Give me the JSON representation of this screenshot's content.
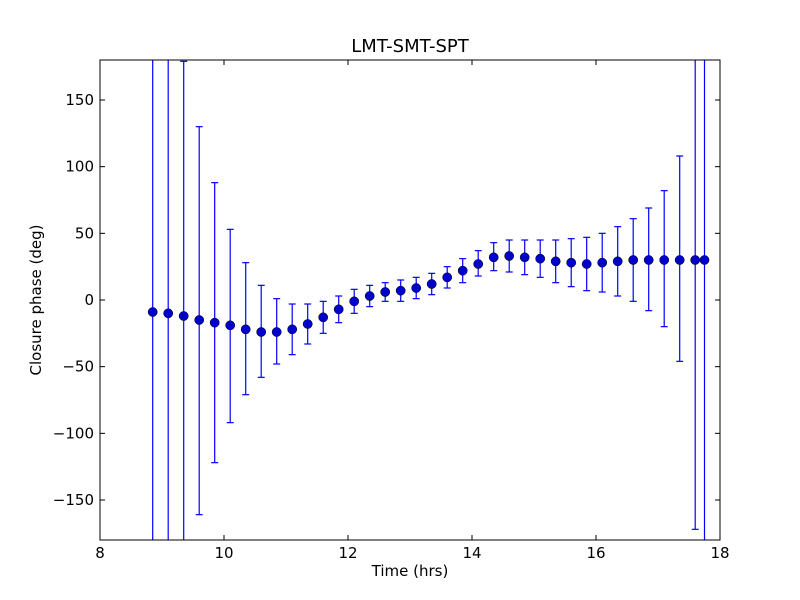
{
  "chart_data": {
    "type": "scatter",
    "title": "LMT-SMT-SPT",
    "xlabel": "Time (hrs)",
    "ylabel": "Closure phase (deg)",
    "xlim": [
      8,
      18
    ],
    "ylim": [
      -180,
      180
    ],
    "x_ticks": [
      8,
      10,
      12,
      14,
      16,
      18
    ],
    "x_tick_labels": [
      "8",
      "10",
      "12",
      "14",
      "16",
      "18"
    ],
    "y_ticks": [
      -150,
      -100,
      -50,
      0,
      50,
      100,
      150
    ],
    "y_tick_labels": [
      "−150",
      "−100",
      "−50",
      "0",
      "50",
      "100",
      "150"
    ],
    "grid": false,
    "legend": "none",
    "marker_color": "#0000cc",
    "errorbar_color": "#0000ff",
    "series": [
      {
        "x": [
          8.85,
          9.1,
          9.35,
          9.6,
          9.85,
          10.1,
          10.35,
          10.6,
          10.85,
          11.1,
          11.35,
          11.6,
          11.85,
          12.1,
          12.35,
          12.6,
          12.85,
          13.1,
          13.35,
          13.6,
          13.85,
          14.1,
          14.35,
          14.6,
          14.85,
          15.1,
          15.35,
          15.6,
          15.85,
          16.1,
          16.35,
          16.6,
          16.85,
          17.1,
          17.35,
          17.6,
          17.75
        ],
        "y": [
          -9,
          -10,
          -12,
          -15,
          -17,
          -19,
          -22,
          -24,
          -24,
          -22,
          -18,
          -13,
          -7,
          -1,
          3,
          6,
          7,
          9,
          12,
          17,
          22,
          27,
          32,
          33,
          32,
          31,
          29,
          28,
          27,
          28,
          29,
          30,
          30,
          30,
          30,
          30,
          30
        ],
        "yerr_low": [
          200,
          200,
          200,
          146,
          105,
          73,
          49,
          34,
          24,
          19,
          15,
          12,
          10,
          9,
          8,
          7,
          8,
          8,
          8,
          8,
          9,
          9,
          10,
          12,
          13,
          14,
          16,
          18,
          20,
          22,
          26,
          31,
          38,
          50,
          76,
          202,
          220
        ],
        "yerr_high": [
          200,
          200,
          191,
          145,
          105,
          72,
          50,
          35,
          25,
          19,
          15,
          12,
          10,
          9,
          8,
          7,
          8,
          8,
          8,
          8,
          9,
          10,
          11,
          12,
          13,
          14,
          16,
          18,
          20,
          22,
          26,
          31,
          39,
          52,
          78,
          200,
          200
        ]
      }
    ]
  }
}
